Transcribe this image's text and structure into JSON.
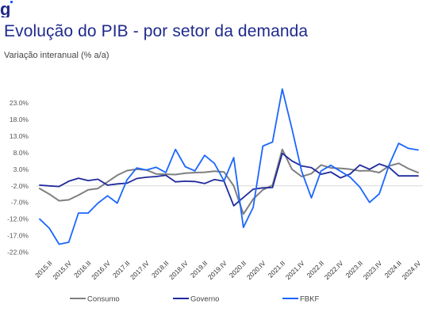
{
  "brand": {
    "logo_icon": "g-logo-icon",
    "logo_glyph": "g",
    "color": "#1f2a8c"
  },
  "header": {
    "title": "Evolução do PIB - por setor da demanda",
    "subtitle": "Variação interanual (% a/a)"
  },
  "chart_data": {
    "type": "line",
    "ylim": [
      -22,
      25
    ],
    "yticks": [
      23,
      18,
      13,
      8,
      3,
      -2,
      -7,
      -12,
      -17,
      -22
    ],
    "ytick_labels": [
      "23.0%",
      "18.0%",
      "13.0%",
      "8.0%",
      "3.0%",
      "-2.0%",
      "-7.0%",
      "-12.0%",
      "-17.0%",
      "-22.0%"
    ],
    "x": [
      "2015.I",
      "2015.II",
      "2015.III",
      "2015.IV",
      "2016.I",
      "2016.II",
      "2016.III",
      "2016.IV",
      "2017.I",
      "2017.II",
      "2017.III",
      "2017.IV",
      "2018.I",
      "2018.II",
      "2018.III",
      "2018.IV",
      "2019.I",
      "2019.II",
      "2019.III",
      "2019.IV",
      "2020.I",
      "2020.II",
      "2020.III",
      "2020.IV",
      "2021.I",
      "2021.II",
      "2021.III",
      "2021.IV",
      "2022.I",
      "2022.II",
      "2022.III",
      "2022.IV",
      "2023.I",
      "2023.II",
      "2023.III",
      "2023.IV",
      "2024.I",
      "2024.II",
      "2024.III",
      "2024.IV"
    ],
    "xtick_labels": [
      "2015.II",
      "2015.IV",
      "2016.II",
      "2016.IV",
      "2017.II",
      "2017.IV",
      "2018.II",
      "2018.IV",
      "2019.II",
      "2019.IV",
      "2020.II",
      "2020.IV",
      "2021.II",
      "2021.IV",
      "2022.II",
      "2022.IV",
      "2023.II",
      "2023.IV",
      "2024.II",
      "2024.IV"
    ],
    "series": [
      {
        "name": "Consumo",
        "color": "#7f7f7f",
        "values": [
          -2.8,
          -4.5,
          -6.5,
          -6.2,
          -4.8,
          -3.2,
          -2.8,
          -0.8,
          1.2,
          2.6,
          3.0,
          2.8,
          1.6,
          1.5,
          1.4,
          1.8,
          2.0,
          2.1,
          2.4,
          2.2,
          -2.0,
          -10.5,
          -6.0,
          -3.2,
          -1.8,
          9.0,
          3.0,
          0.8,
          1.7,
          4.3,
          3.4,
          3.3,
          3.0,
          2.5,
          2.6,
          2.0,
          4.0,
          4.8,
          3.2,
          2.0
        ]
      },
      {
        "name": "Governo",
        "color": "#1f2a9c",
        "values": [
          -1.8,
          -2.0,
          -2.2,
          -0.6,
          0.3,
          -0.4,
          0.0,
          -1.8,
          -1.4,
          -1.2,
          0.2,
          0.6,
          0.8,
          1.2,
          -0.8,
          -0.6,
          -0.7,
          -1.3,
          -0.1,
          -0.6,
          -8.0,
          -5.5,
          -3.0,
          -2.6,
          -2.5,
          7.8,
          5.5,
          4.0,
          3.5,
          1.5,
          2.2,
          0.4,
          1.6,
          4.3,
          3.0,
          4.6,
          3.6,
          1.0,
          1.0,
          1.0
        ]
      },
      {
        "name": "FBKF",
        "color": "#1a66ff",
        "values": [
          -12.0,
          -14.8,
          -19.6,
          -19.0,
          -10.2,
          -10.2,
          -7.2,
          -5.0,
          -7.2,
          -0.2,
          3.4,
          2.8,
          3.6,
          2.0,
          9.0,
          3.8,
          2.5,
          7.2,
          4.8,
          -0.5,
          6.5,
          -14.5,
          -8.5,
          10.0,
          11.2,
          27.2,
          15.2,
          2.4,
          -5.6,
          2.5,
          4.2,
          2.4,
          0.6,
          -2.4,
          -7.0,
          -4.4,
          4.2,
          10.8,
          9.3,
          8.8
        ]
      }
    ],
    "legend_position": "bottom",
    "grid": false
  }
}
